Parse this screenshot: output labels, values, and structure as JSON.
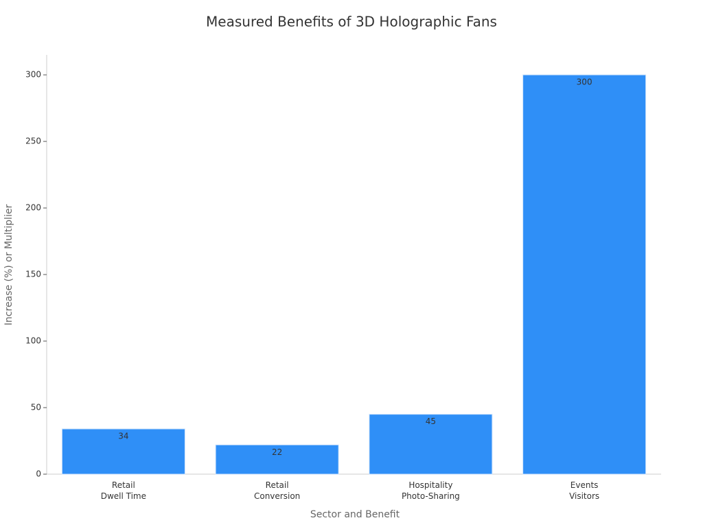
{
  "chart_data": {
    "type": "bar",
    "title": "Measured Benefits of 3D Holographic Fans",
    "x_label": "Sector and Benefit",
    "y_label": "Increase (%) or Multiplier",
    "categories": [
      [
        "Retail",
        "Dwell Time"
      ],
      [
        "Retail",
        "Conversion"
      ],
      [
        "Hospitality",
        "Photo-Sharing"
      ],
      [
        "Events",
        "Visitors"
      ]
    ],
    "values": [
      34,
      22,
      45,
      300
    ],
    "color": "#2f8ff7",
    "ylim": [
      0,
      315
    ],
    "yticks": [
      0,
      50,
      100,
      150,
      200,
      250,
      300
    ],
    "grid": false
  }
}
